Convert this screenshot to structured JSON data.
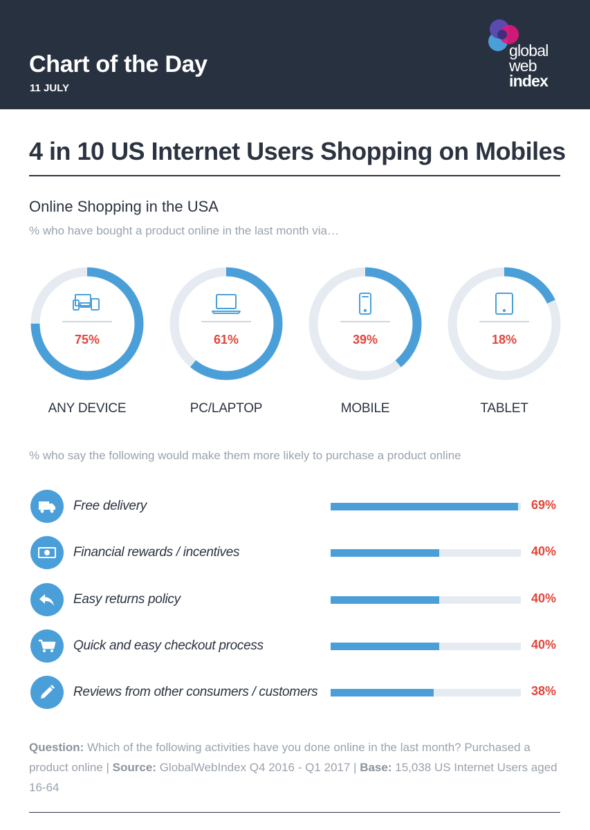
{
  "header": {
    "title": "Chart of the Day",
    "date": "11 JULY",
    "logo_lines": [
      "global",
      "web",
      "index"
    ]
  },
  "main_title": "4 in 10 US Internet Users Shopping on Mobiles",
  "chart_data": [
    {
      "type": "donut",
      "title": "Online Shopping in the USA",
      "subtitle": "% who have bought a product online in the last month via…",
      "categories": [
        "ANY DEVICE",
        "PC/LAPTOP",
        "MOBILE",
        "TABLET"
      ],
      "values": [
        75,
        61,
        39,
        18
      ],
      "value_labels": [
        "75%",
        "61%",
        "39%",
        "18%"
      ],
      "icons": [
        "multi-device-icon",
        "laptop-icon",
        "smartphone-icon",
        "tablet-icon"
      ],
      "unit": "%",
      "colors": {
        "fill": "#4b9fd9",
        "track": "#e6ebf2",
        "value": "#e0463a"
      }
    },
    {
      "type": "bar",
      "orientation": "horizontal",
      "subtitle": "% who say the following would make them more likely to purchase a product online",
      "categories": [
        "Free delivery",
        "Financial rewards / incentives",
        "Easy returns policy",
        "Quick and easy checkout process",
        "Reviews from other consumers / customers"
      ],
      "values": [
        69,
        40,
        40,
        40,
        38
      ],
      "value_labels": [
        "69%",
        "40%",
        "40%",
        "40%",
        "38%"
      ],
      "icons": [
        "truck-icon",
        "money-icon",
        "return-arrow-icon",
        "cart-icon",
        "pencil-icon"
      ],
      "xlim": [
        0,
        70
      ],
      "unit": "%",
      "colors": {
        "fill": "#4b9fd9",
        "track": "#e6ebf2",
        "value": "#e0463a"
      }
    }
  ],
  "footer": {
    "question_label": "Question:",
    "question_text": " Which of the following activities have you done online in the last month? Purchased a product online  |  ",
    "source_label": "Source:",
    "source_text": " GlobalWebIndex Q4 2016 - Q1 2017  |  ",
    "base_label": "Base:",
    "base_text": " 15,038 US Internet Users aged 16-64"
  }
}
